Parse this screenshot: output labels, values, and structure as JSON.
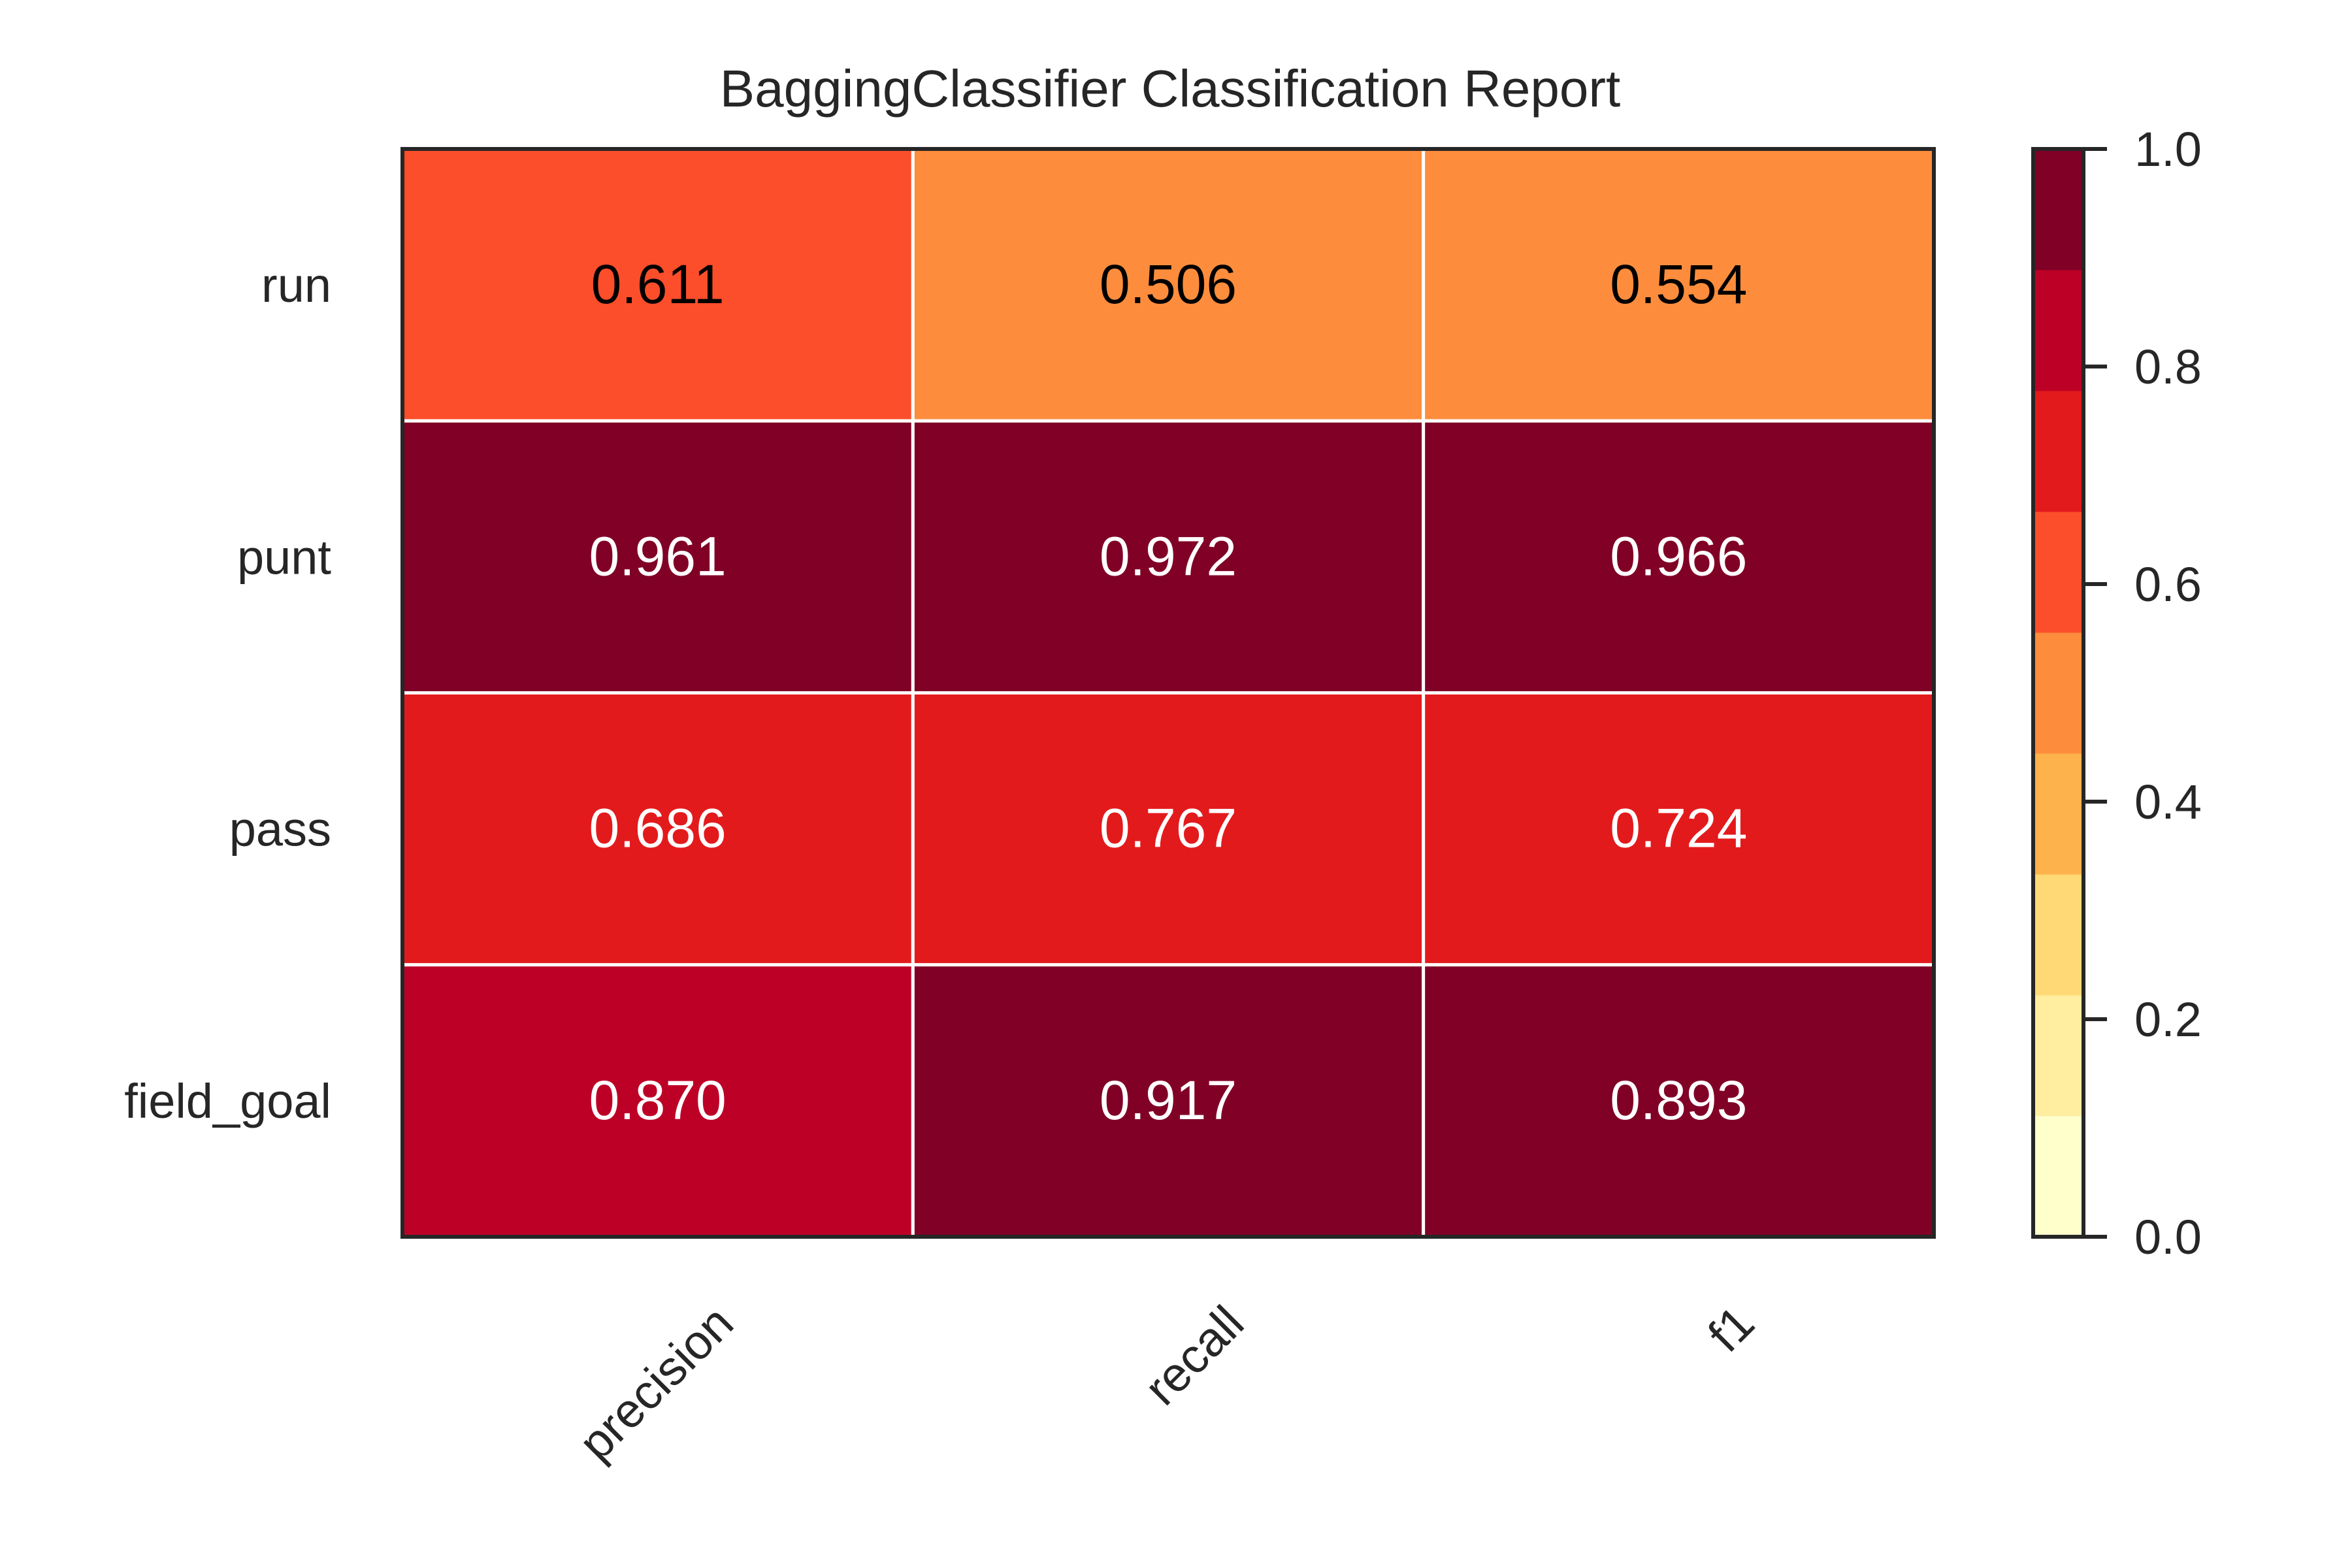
{
  "chart_data": {
    "type": "heatmap",
    "title": "BaggingClassifier Classification Report",
    "columns": [
      "precision",
      "recall",
      "f1"
    ],
    "rows": [
      "run",
      "punt",
      "pass",
      "field_goal"
    ],
    "values": [
      [
        0.611,
        0.506,
        0.554
      ],
      [
        0.961,
        0.972,
        0.966
      ],
      [
        0.686,
        0.767,
        0.724
      ],
      [
        0.87,
        0.917,
        0.893
      ]
    ],
    "value_labels": [
      [
        "0.611",
        "0.506",
        "0.554"
      ],
      [
        "0.961",
        "0.972",
        "0.966"
      ],
      [
        "0.686",
        "0.767",
        "0.724"
      ],
      [
        "0.870",
        "0.917",
        "0.893"
      ]
    ],
    "colorbar": {
      "range": [
        0.0,
        1.0
      ],
      "ticks": [
        0.0,
        0.2,
        0.4,
        0.6,
        0.8,
        1.0
      ],
      "tick_labels": [
        "0.0",
        "0.2",
        "0.4",
        "0.6",
        "0.8",
        "1.0"
      ],
      "colors": [
        "#ffffcc",
        "#ffeda0",
        "#fed976",
        "#feb24c",
        "#fd8d3c",
        "#fc4e2a",
        "#e31a1c",
        "#bd0026",
        "#800026"
      ],
      "colormap": "YlOrRd"
    },
    "grid": true
  }
}
